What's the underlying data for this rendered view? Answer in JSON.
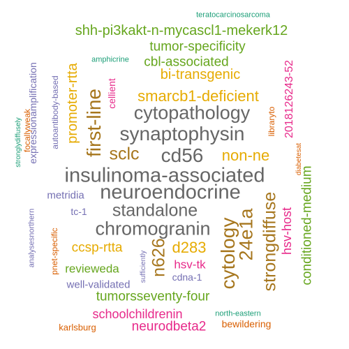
{
  "words": [
    {
      "text": "teratocarcinosarcoma",
      "color": "#1b9e77"
    },
    {
      "text": "shh-pi3kakt-n-mycascl1-mekerk12",
      "color": "#66a61e"
    },
    {
      "text": "tumor-specificity",
      "color": "#66a61e"
    },
    {
      "text": "amphicrine",
      "color": "#1b9e77"
    },
    {
      "text": "cbl-associated",
      "color": "#66a61e"
    },
    {
      "text": "bi-transgenic",
      "color": "#e6ab02"
    },
    {
      "text": "expressionamplification",
      "color": "#7570b3"
    },
    {
      "text": "autoantibody-based",
      "color": "#7570b3"
    },
    {
      "text": "promoter-rtta",
      "color": "#e6ab02"
    },
    {
      "text": "cellient",
      "color": "#e7298a"
    },
    {
      "text": "2018126243-52",
      "color": "#e7298a"
    },
    {
      "text": "first-line",
      "color": "#a6761d"
    },
    {
      "text": "smarcb1-deficient",
      "color": "#e6ab02"
    },
    {
      "text": "cytopathology",
      "color": "#666666"
    },
    {
      "text": "synaptophysin",
      "color": "#666666"
    },
    {
      "text": "stronglydiffusely",
      "color": "#1b9e77"
    },
    {
      "text": "focallyweak",
      "color": "#d95f02"
    },
    {
      "text": "libraryto",
      "color": "#d95f02"
    },
    {
      "text": "diabetesat",
      "color": "#d95f02"
    },
    {
      "text": "conditioned-medium",
      "color": "#66a61e"
    },
    {
      "text": "sclc",
      "color": "#a6761d"
    },
    {
      "text": "cd56",
      "color": "#666666"
    },
    {
      "text": "non-ne",
      "color": "#e6ab02"
    },
    {
      "text": "insulinoma-associated",
      "color": "#666666"
    },
    {
      "text": "neuroendocrine",
      "color": "#666666"
    },
    {
      "text": "metridia",
      "color": "#7570b3"
    },
    {
      "text": "standalone",
      "color": "#666666"
    },
    {
      "text": "strongdiffuse",
      "color": "#a6761d"
    },
    {
      "text": "hsv-host",
      "color": "#e7298a"
    },
    {
      "text": "analysesnorthern",
      "color": "#7570b3"
    },
    {
      "text": "tc-1",
      "color": "#7570b3"
    },
    {
      "text": "chromogranin",
      "color": "#666666"
    },
    {
      "text": "cytology",
      "color": "#a6761d"
    },
    {
      "text": "24e1a",
      "color": "#a6761d"
    },
    {
      "text": "pnet-specific",
      "color": "#d95f02"
    },
    {
      "text": "ccsp-rtta",
      "color": "#e6ab02"
    },
    {
      "text": "n626",
      "color": "#a6761d"
    },
    {
      "text": "d283",
      "color": "#e6ab02"
    },
    {
      "text": "sufficiently",
      "color": "#7570b3"
    },
    {
      "text": "hsv-tk",
      "color": "#e7298a"
    },
    {
      "text": "revieweda",
      "color": "#66a61e"
    },
    {
      "text": "cdna-1",
      "color": "#7570b3"
    },
    {
      "text": "well-validated",
      "color": "#7570b3"
    },
    {
      "text": "tumorsseventy-four",
      "color": "#66a61e"
    },
    {
      "text": "schoolchildrenin",
      "color": "#e7298a"
    },
    {
      "text": "north-eastern",
      "color": "#1b9e77"
    },
    {
      "text": "neurodbeta2",
      "color": "#e7298a"
    },
    {
      "text": "karlsburg",
      "color": "#d95f02"
    },
    {
      "text": "bewildering",
      "color": "#d95f02"
    }
  ]
}
